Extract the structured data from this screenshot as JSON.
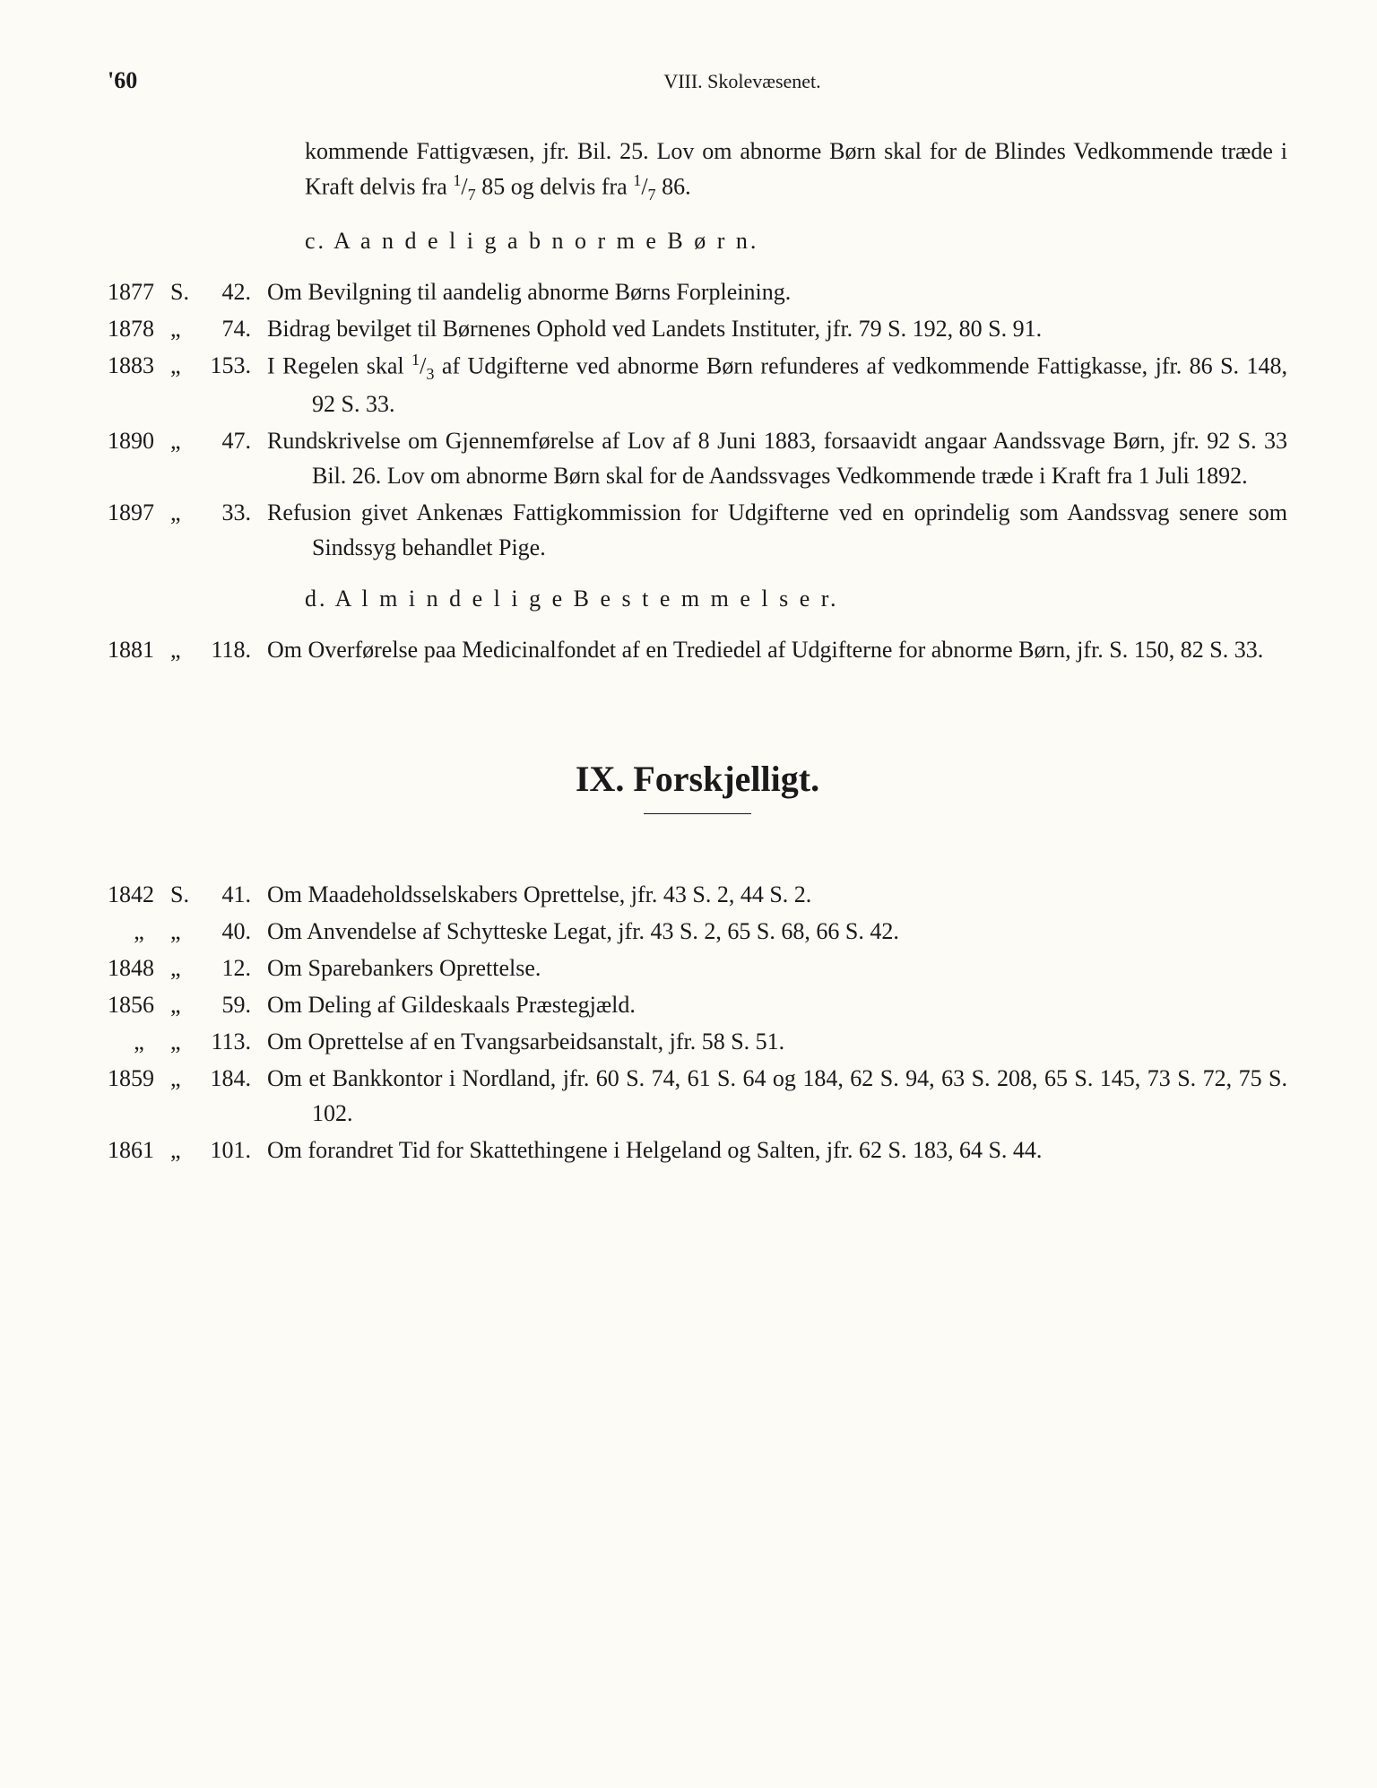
{
  "page_number": "'60",
  "chapter_header": "VIII.   Skolevæsenet.",
  "intro_para_parts": {
    "a": "kommende Fattigvæsen, jfr. Bil. 25.  Lov om abnorme Børn skal for de Blindes Vedkommende træde i Kraft delvis fra ",
    "frac1_n": "1",
    "frac1_d": "7",
    "b": " 85 og delvis fra ",
    "frac2_n": "1",
    "frac2_d": "7",
    "c": " 86."
  },
  "subheading_c": "c.   A a n d e l i g  a b n o r m e  B ø r n.",
  "entries_c": [
    {
      "year": "1877",
      "mark": "S.",
      "num": "42.",
      "text": "Om Bevilgning til aandelig abnorme Børns Forpleining."
    },
    {
      "year": "1878",
      "mark": "„",
      "num": "74.",
      "text": "Bidrag bevilget til Børnenes Ophold ved Landets Instituter, jfr. 79 S. 192, 80 S. 91."
    },
    {
      "year": "1883",
      "mark": "„",
      "num": "153.",
      "text_parts": {
        "a": "I Regelen skal ",
        "frac_n": "1",
        "frac_d": "3",
        "b": " af Udgifterne ved abnorme Børn refunderes af vedkommende Fattigkasse, jfr. 86 S. 148, 92 S. 33."
      }
    },
    {
      "year": "1890",
      "mark": "„",
      "num": "47.",
      "text": "Rundskrivelse om Gjennemførelse af Lov af 8 Juni 1883, forsaavidt angaar Aandssvage Børn, jfr. 92 S. 33 Bil. 26.  Lov om abnorme Børn skal for de Aandssvages Vedkommende træde i Kraft fra 1 Juli 1892."
    },
    {
      "year": "1897",
      "mark": "„",
      "num": "33.",
      "text": "Refusion givet Ankenæs Fattigkommission for Udgifterne ved en oprindelig som Aandssvag senere som Sindssyg behandlet Pige."
    }
  ],
  "subheading_d": "d.   A l m i n d e l i g e  B e s t e m m e l s e r.",
  "entries_d": [
    {
      "year": "1881",
      "mark": "„",
      "num": "118.",
      "text": "Om Overførelse paa Medicinalfondet af en Trediedel af Udgifterne for abnorme Børn, jfr. S. 150, 82 S. 33."
    }
  ],
  "chapter_title": "IX.    Forskjelligt.",
  "entries_ix": [
    {
      "year": "1842",
      "mark": "S.",
      "num": "41.",
      "text": "Om Maadeholdsselskabers Oprettelse, jfr. 43 S. 2, 44 S. 2."
    },
    {
      "year": "„",
      "mark": "„",
      "num": "40.",
      "text": "Om Anvendelse af Schytteske Legat, jfr. 43 S. 2, 65 S. 68, 66 S. 42."
    },
    {
      "year": "1848",
      "mark": "„",
      "num": "12.",
      "text": "Om Sparebankers Oprettelse."
    },
    {
      "year": "1856",
      "mark": "„",
      "num": "59.",
      "text": "Om Deling af Gildeskaals Præstegjæld."
    },
    {
      "year": "„",
      "mark": "„",
      "num": "113.",
      "text": "Om Oprettelse af en Tvangsarbeidsanstalt, jfr. 58 S. 51."
    },
    {
      "year": "1859",
      "mark": "„",
      "num": "184.",
      "text": "Om et Bankkontor i Nordland, jfr. 60 S. 74, 61 S. 64 og 184, 62 S. 94, 63 S. 208, 65 S. 145, 73 S. 72, 75 S. 102."
    },
    {
      "year": "1861",
      "mark": "„",
      "num": "101.",
      "text": "Om forandret Tid for Skattethingene i Helgeland og Salten, jfr. 62 S. 183, 64 S. 44."
    }
  ]
}
